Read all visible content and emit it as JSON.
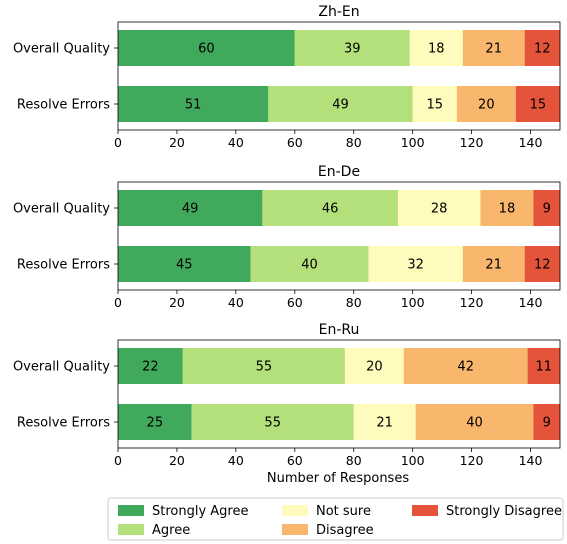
{
  "chart_data": {
    "type": "bar",
    "orientation": "horizontal",
    "stacked": true,
    "xlabel": "Number of Responses",
    "xlim": [
      0,
      150
    ],
    "xticks": [
      0,
      20,
      40,
      60,
      80,
      100,
      120,
      140
    ],
    "categories": [
      "Overall Quality",
      "Resolve Errors"
    ],
    "legend": {
      "placement": "bottom",
      "entries": [
        "Strongly Agree",
        "Agree",
        "Not sure",
        "Disagree",
        "Strongly Disagree"
      ]
    },
    "series_colors": [
      "#41a95c",
      "#b3e07a",
      "#fefbbd",
      "#f8b76c",
      "#e4533a"
    ],
    "panels": [
      {
        "title": "Zh-En",
        "series": [
          {
            "name": "Strongly Agree",
            "values": [
              60,
              51
            ]
          },
          {
            "name": "Agree",
            "values": [
              39,
              49
            ]
          },
          {
            "name": "Not sure",
            "values": [
              18,
              15
            ]
          },
          {
            "name": "Disagree",
            "values": [
              21,
              20
            ]
          },
          {
            "name": "Strongly Disagree",
            "values": [
              12,
              15
            ]
          }
        ]
      },
      {
        "title": "En-De",
        "series": [
          {
            "name": "Strongly Agree",
            "values": [
              49,
              45
            ]
          },
          {
            "name": "Agree",
            "values": [
              46,
              40
            ]
          },
          {
            "name": "Not sure",
            "values": [
              28,
              32
            ]
          },
          {
            "name": "Disagree",
            "values": [
              18,
              21
            ]
          },
          {
            "name": "Strongly Disagree",
            "values": [
              9,
              12
            ]
          }
        ]
      },
      {
        "title": "En-Ru",
        "series": [
          {
            "name": "Strongly Agree",
            "values": [
              22,
              25
            ]
          },
          {
            "name": "Agree",
            "values": [
              55,
              55
            ]
          },
          {
            "name": "Not sure",
            "values": [
              20,
              21
            ]
          },
          {
            "name": "Disagree",
            "values": [
              42,
              40
            ]
          },
          {
            "name": "Strongly Disagree",
            "values": [
              11,
              9
            ]
          }
        ]
      }
    ]
  }
}
